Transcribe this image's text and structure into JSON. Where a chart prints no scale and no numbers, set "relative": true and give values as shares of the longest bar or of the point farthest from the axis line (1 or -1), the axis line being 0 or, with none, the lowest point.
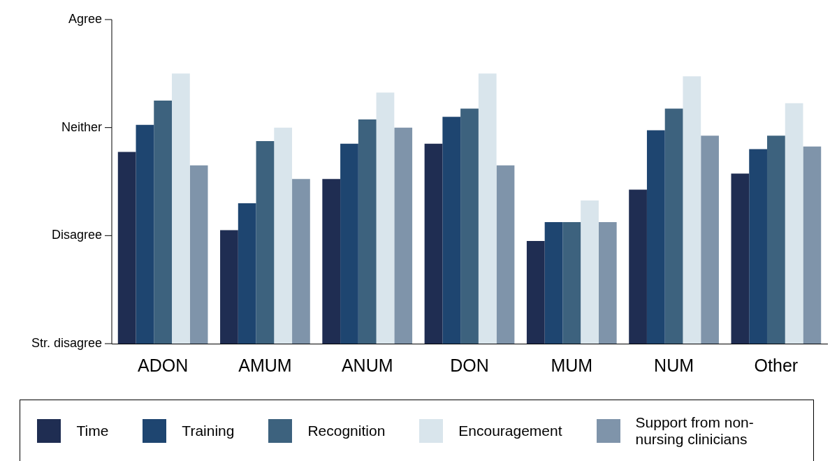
{
  "chart_data": {
    "type": "bar",
    "relative": true,
    "categories": [
      "ADON",
      "AMUM",
      "ANUM",
      "DON",
      "MUM",
      "NUM",
      "Other"
    ],
    "series": [
      {
        "name": "Time",
        "color": "#1f2d52",
        "values": [
          0.71,
          0.42,
          0.61,
          0.74,
          0.38,
          0.57,
          0.63
        ]
      },
      {
        "name": "Training",
        "color": "#1e4570",
        "values": [
          0.81,
          0.52,
          0.74,
          0.84,
          0.45,
          0.79,
          0.72
        ]
      },
      {
        "name": "Recognition",
        "color": "#3d627e",
        "values": [
          0.9,
          0.75,
          0.83,
          0.87,
          0.45,
          0.87,
          0.77
        ]
      },
      {
        "name": "Encouragement",
        "color": "#d9e5ec",
        "values": [
          1,
          0.8,
          0.93,
          1,
          0.53,
          0.99,
          0.89
        ]
      },
      {
        "name": "Support from non-nursing clinicians",
        "color": "#7f94aa",
        "values": [
          0.66,
          0.61,
          0.8,
          0.66,
          0.45,
          0.77,
          0.73
        ]
      }
    ],
    "annotations": [
      "Str. disagree",
      "Disagree",
      "Neither",
      "Agree"
    ],
    "legend": "bottom"
  }
}
